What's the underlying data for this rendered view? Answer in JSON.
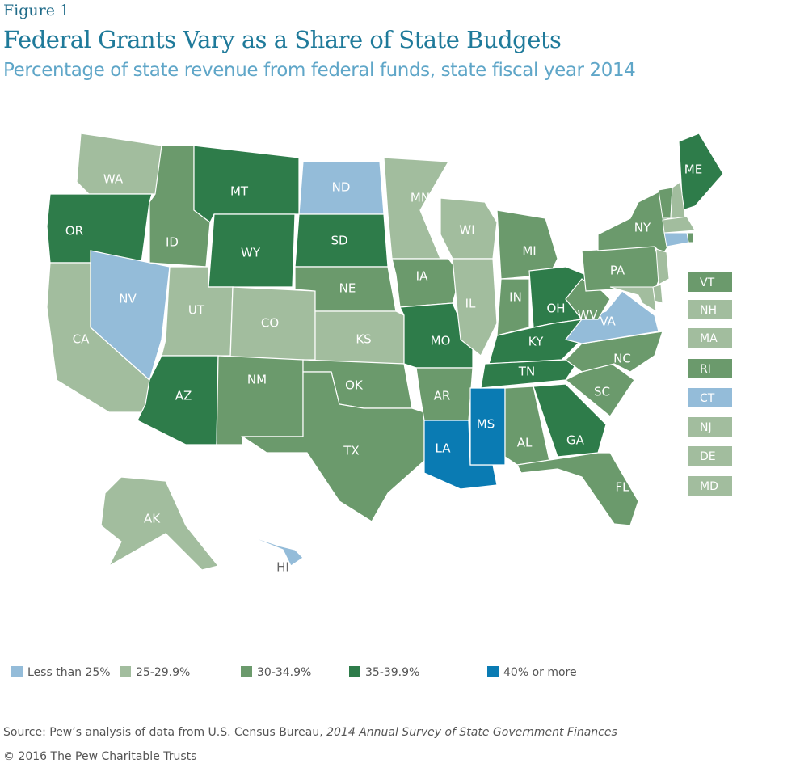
{
  "header": {
    "figure": "Figure 1",
    "title": "Federal Grants Vary as a Share of State Budgets",
    "subtitle": "Percentage of state revenue from federal funds, state fiscal year 2014"
  },
  "legend": [
    {
      "label": "Less than 25%",
      "color": "#94bcd9"
    },
    {
      "label": "25-29.9%",
      "color": "#a2bd9e"
    },
    {
      "label": "30-34.9%",
      "color": "#6b9a6c"
    },
    {
      "label": "35-39.9%",
      "color": "#2e7c4a"
    },
    {
      "label": "40% or more",
      "color": "#0a7bb3"
    }
  ],
  "states": [
    {
      "abbr": "WA",
      "category": "25-29.9%"
    },
    {
      "abbr": "OR",
      "category": "35-39.9%"
    },
    {
      "abbr": "CA",
      "category": "25-29.9%"
    },
    {
      "abbr": "NV",
      "category": "Less than 25%"
    },
    {
      "abbr": "ID",
      "category": "30-34.9%"
    },
    {
      "abbr": "MT",
      "category": "35-39.9%"
    },
    {
      "abbr": "WY",
      "category": "35-39.9%"
    },
    {
      "abbr": "UT",
      "category": "25-29.9%"
    },
    {
      "abbr": "CO",
      "category": "25-29.9%"
    },
    {
      "abbr": "AZ",
      "category": "35-39.9%"
    },
    {
      "abbr": "NM",
      "category": "30-34.9%"
    },
    {
      "abbr": "ND",
      "category": "Less than 25%"
    },
    {
      "abbr": "SD",
      "category": "35-39.9%"
    },
    {
      "abbr": "NE",
      "category": "30-34.9%"
    },
    {
      "abbr": "KS",
      "category": "25-29.9%"
    },
    {
      "abbr": "OK",
      "category": "30-34.9%"
    },
    {
      "abbr": "TX",
      "category": "30-34.9%"
    },
    {
      "abbr": "MN",
      "category": "25-29.9%"
    },
    {
      "abbr": "IA",
      "category": "30-34.9%"
    },
    {
      "abbr": "MO",
      "category": "35-39.9%"
    },
    {
      "abbr": "AR",
      "category": "30-34.9%"
    },
    {
      "abbr": "LA",
      "category": "40% or more"
    },
    {
      "abbr": "MS",
      "category": "40% or more"
    },
    {
      "abbr": "WI",
      "category": "25-29.9%"
    },
    {
      "abbr": "IL",
      "category": "25-29.9%"
    },
    {
      "abbr": "MI",
      "category": "30-34.9%"
    },
    {
      "abbr": "IN",
      "category": "30-34.9%"
    },
    {
      "abbr": "OH",
      "category": "35-39.9%"
    },
    {
      "abbr": "KY",
      "category": "35-39.9%"
    },
    {
      "abbr": "TN",
      "category": "35-39.9%"
    },
    {
      "abbr": "AL",
      "category": "30-34.9%"
    },
    {
      "abbr": "GA",
      "category": "35-39.9%"
    },
    {
      "abbr": "FL",
      "category": "30-34.9%"
    },
    {
      "abbr": "SC",
      "category": "30-34.9%"
    },
    {
      "abbr": "NC",
      "category": "30-34.9%"
    },
    {
      "abbr": "VA",
      "category": "Less than 25%"
    },
    {
      "abbr": "WV",
      "category": "30-34.9%"
    },
    {
      "abbr": "PA",
      "category": "30-34.9%"
    },
    {
      "abbr": "NY",
      "category": "30-34.9%"
    },
    {
      "abbr": "ME",
      "category": "35-39.9%"
    },
    {
      "abbr": "AK",
      "category": "25-29.9%"
    },
    {
      "abbr": "HI",
      "category": "Less than 25%"
    }
  ],
  "callouts": [
    {
      "abbr": "VT",
      "category": "30-34.9%"
    },
    {
      "abbr": "NH",
      "category": "25-29.9%"
    },
    {
      "abbr": "MA",
      "category": "25-29.9%"
    },
    {
      "abbr": "RI",
      "category": "30-34.9%"
    },
    {
      "abbr": "CT",
      "category": "Less than 25%"
    },
    {
      "abbr": "NJ",
      "category": "25-29.9%"
    },
    {
      "abbr": "DE",
      "category": "25-29.9%"
    },
    {
      "abbr": "MD",
      "category": "25-29.9%"
    }
  ],
  "source": {
    "prefix": "Source: Pew’s analysis of data from U.S. Census Bureau,",
    "title": "2014 Annual Survey of State Government Finances"
  },
  "copyright": "© 2016 The Pew Charitable Trusts"
}
